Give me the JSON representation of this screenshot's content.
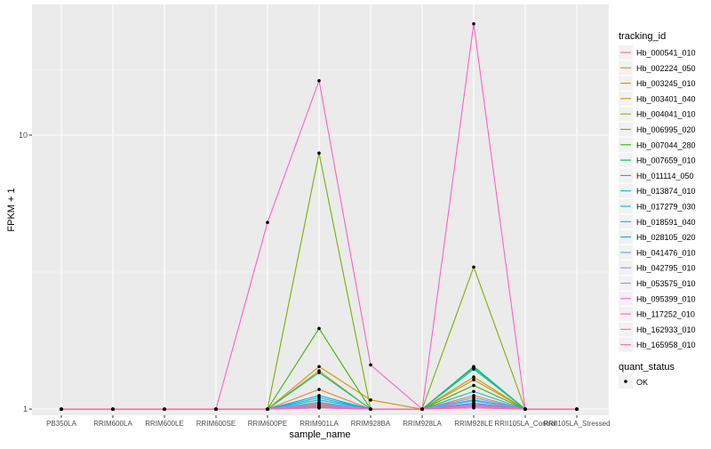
{
  "chart_data": {
    "type": "line",
    "title": "",
    "xlabel": "sample_name",
    "ylabel": "FPKM + 1",
    "y_scale": "log10",
    "ylim": [
      0.95,
      30
    ],
    "y_ticks": [
      1,
      10
    ],
    "y_tick_labels": [
      "1",
      "10"
    ],
    "grid": true,
    "legend_position": "right",
    "categories": [
      "PB350LA",
      "RRIM600LA",
      "RRIM600LE",
      "RRIM600SE",
      "RRIM600PE",
      "RRIM901LA",
      "RRIM928BA",
      "RRIM928LA",
      "RRIM928LE",
      "RRII105LA_Control",
      "RRII105LA_Stressed"
    ],
    "series": [
      {
        "name": "Hb_000541_010",
        "color": "#F8766D",
        "values": [
          1,
          1,
          1,
          1,
          1,
          1.02,
          1,
          1,
          1.03,
          1,
          1
        ]
      },
      {
        "name": "Hb_002224_050",
        "color": "#EA8331",
        "values": [
          1,
          1,
          1,
          1,
          1,
          1.18,
          1,
          1,
          1.12,
          1,
          1
        ]
      },
      {
        "name": "Hb_003245_010",
        "color": "#D89000",
        "values": [
          1,
          1,
          1,
          1,
          1,
          1.43,
          1.08,
          1,
          1.31,
          1,
          1
        ]
      },
      {
        "name": "Hb_003401_040",
        "color": "#C09B00",
        "values": [
          1,
          1,
          1,
          1,
          1,
          1.38,
          1,
          1,
          1.28,
          1,
          1
        ]
      },
      {
        "name": "Hb_004041_010",
        "color": "#A3A500",
        "values": [
          1,
          1,
          1,
          1,
          1,
          1.05,
          1,
          1,
          1.05,
          1,
          1
        ]
      },
      {
        "name": "Hb_006995_020",
        "color": "#7CAE00",
        "values": [
          1,
          1,
          1,
          1,
          1,
          8.6,
          1,
          1,
          3.3,
          1,
          1
        ]
      },
      {
        "name": "Hb_007044_280",
        "color": "#39B600",
        "values": [
          1,
          1,
          1,
          1,
          1,
          1.97,
          1,
          1,
          1.22,
          1,
          1
        ]
      },
      {
        "name": "Hb_007659_010",
        "color": "#00BB4E",
        "values": [
          1,
          1,
          1,
          1,
          1,
          1.04,
          1,
          1,
          1.43,
          1,
          1
        ]
      },
      {
        "name": "Hb_011114_050",
        "color": "#00BF7D",
        "values": [
          1,
          1,
          1,
          1,
          1,
          1.02,
          1,
          1,
          1.4,
          1,
          1
        ]
      },
      {
        "name": "Hb_013874_010",
        "color": "#00C1A3",
        "values": [
          1,
          1,
          1,
          1,
          1,
          1.36,
          1,
          1,
          1.42,
          1,
          1
        ]
      },
      {
        "name": "Hb_017279_030",
        "color": "#00BFC4",
        "values": [
          1,
          1,
          1,
          1,
          1,
          1.1,
          1,
          1,
          1.08,
          1,
          1
        ]
      },
      {
        "name": "Hb_018591_040",
        "color": "#00B8E7",
        "values": [
          1,
          1,
          1,
          1,
          1,
          1.08,
          1,
          1,
          1.16,
          1,
          1
        ]
      },
      {
        "name": "Hb_028105_020",
        "color": "#00A9FF",
        "values": [
          1,
          1,
          1,
          1,
          1,
          1.12,
          1,
          1,
          1.05,
          1,
          1
        ]
      },
      {
        "name": "Hb_041476_010",
        "color": "#619CFF",
        "values": [
          1,
          1,
          1,
          1,
          1,
          1.03,
          1,
          1,
          1.1,
          1,
          1
        ]
      },
      {
        "name": "Hb_042795_010",
        "color": "#9590FF",
        "values": [
          1,
          1,
          1,
          1,
          1,
          1.06,
          1,
          1,
          1.07,
          1,
          1
        ]
      },
      {
        "name": "Hb_053575_010",
        "color": "#C77CFF",
        "values": [
          1,
          1,
          1,
          1,
          1,
          1.04,
          1,
          1,
          1.02,
          1,
          1
        ]
      },
      {
        "name": "Hb_095399_010",
        "color": "#E76BF3",
        "values": [
          1,
          1,
          1,
          1,
          1,
          1.01,
          1,
          1,
          1.04,
          1,
          1
        ]
      },
      {
        "name": "Hb_117252_010",
        "color": "#FF61C3",
        "values": [
          1,
          1,
          1,
          1,
          4.8,
          15.8,
          1.45,
          1,
          25.5,
          1,
          1
        ]
      },
      {
        "name": "Hb_162933_010",
        "color": "#FF6C91",
        "values": [
          1,
          1,
          1,
          1,
          1,
          1.02,
          1,
          1,
          1.03,
          1,
          1
        ]
      },
      {
        "name": "Hb_165958_010",
        "color": "#FF6A98",
        "values": [
          1,
          1,
          1,
          1,
          1,
          1.01,
          1,
          1,
          1.01,
          1,
          1
        ]
      }
    ],
    "legends": [
      {
        "title": "tracking_id"
      },
      {
        "title": "quant_status",
        "entries": [
          "OK"
        ]
      }
    ]
  }
}
